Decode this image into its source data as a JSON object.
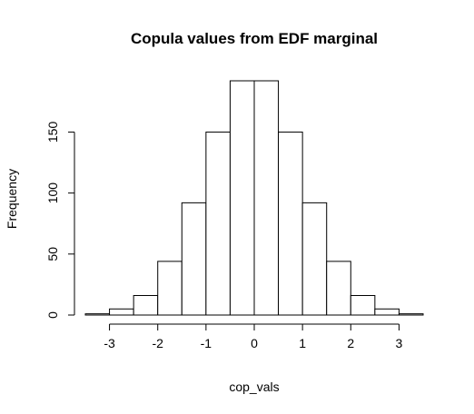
{
  "chart_data": {
    "type": "bar",
    "title": "Copula values from EDF marginal",
    "xlabel": "cop_vals",
    "ylabel": "Frequency",
    "bin_edges": [
      -3.5,
      -3.0,
      -2.5,
      -2.0,
      -1.5,
      -1.0,
      -0.5,
      0.0,
      0.5,
      1.0,
      1.5,
      2.0,
      2.5,
      3.0,
      3.5
    ],
    "values": [
      1,
      5,
      16,
      44,
      92,
      150,
      192,
      192,
      150,
      92,
      44,
      16,
      5,
      1
    ],
    "xlim": [
      -3.5,
      3.5
    ],
    "ylim": [
      0,
      192
    ],
    "x_ticks": [
      -3,
      -2,
      -1,
      0,
      1,
      2,
      3
    ],
    "x_tick_labels": [
      "-3",
      "-2",
      "-1",
      "0",
      "1",
      "2",
      "3"
    ],
    "y_ticks": [
      0,
      50,
      100,
      150
    ],
    "y_tick_labels": [
      "0",
      "50",
      "100",
      "150"
    ],
    "grid": false,
    "legend": "none"
  }
}
